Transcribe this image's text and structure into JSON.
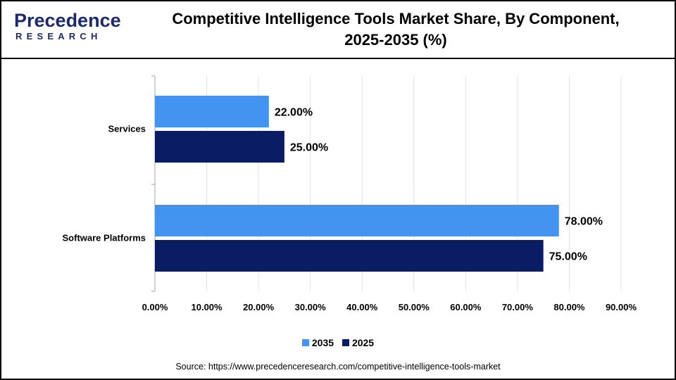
{
  "header": {
    "logo_main": "Precedence",
    "logo_sub": "RESEARCH",
    "title_line1": "Competitive Intelligence Tools Market Share, By Component,",
    "title_line2": "2025-2035 (%)"
  },
  "colors": {
    "series_2035": "#4394f0",
    "series_2025": "#0a1c63",
    "logo": "#1a2a6c"
  },
  "chart_data": {
    "type": "bar",
    "orientation": "horizontal",
    "categories": [
      "Services",
      "Software Platforms"
    ],
    "series": [
      {
        "name": "2035",
        "values": [
          22.0,
          78.0
        ],
        "labels": [
          "22.00%",
          "78.00%"
        ],
        "color": "#4394f0"
      },
      {
        "name": "2025",
        "values": [
          25.0,
          75.0
        ],
        "labels": [
          "25.00%",
          "75.00%"
        ],
        "color": "#0a1c63"
      }
    ],
    "xlim": [
      0,
      90
    ],
    "xticks": [
      0,
      10,
      20,
      30,
      40,
      50,
      60,
      70,
      80,
      90
    ],
    "xtick_labels": [
      "0.00%",
      "10.00%",
      "20.00%",
      "30.00%",
      "40.00%",
      "50.00%",
      "60.00%",
      "70.00%",
      "80.00%",
      "90.00%"
    ],
    "grid": true,
    "legend_position": "bottom"
  },
  "legend": [
    {
      "label": "2035",
      "color": "#4394f0"
    },
    {
      "label": "2025",
      "color": "#0a1c63"
    }
  ],
  "source": "Source: https://www.precedenceresearch.com/competitive-intelligence-tools-market"
}
